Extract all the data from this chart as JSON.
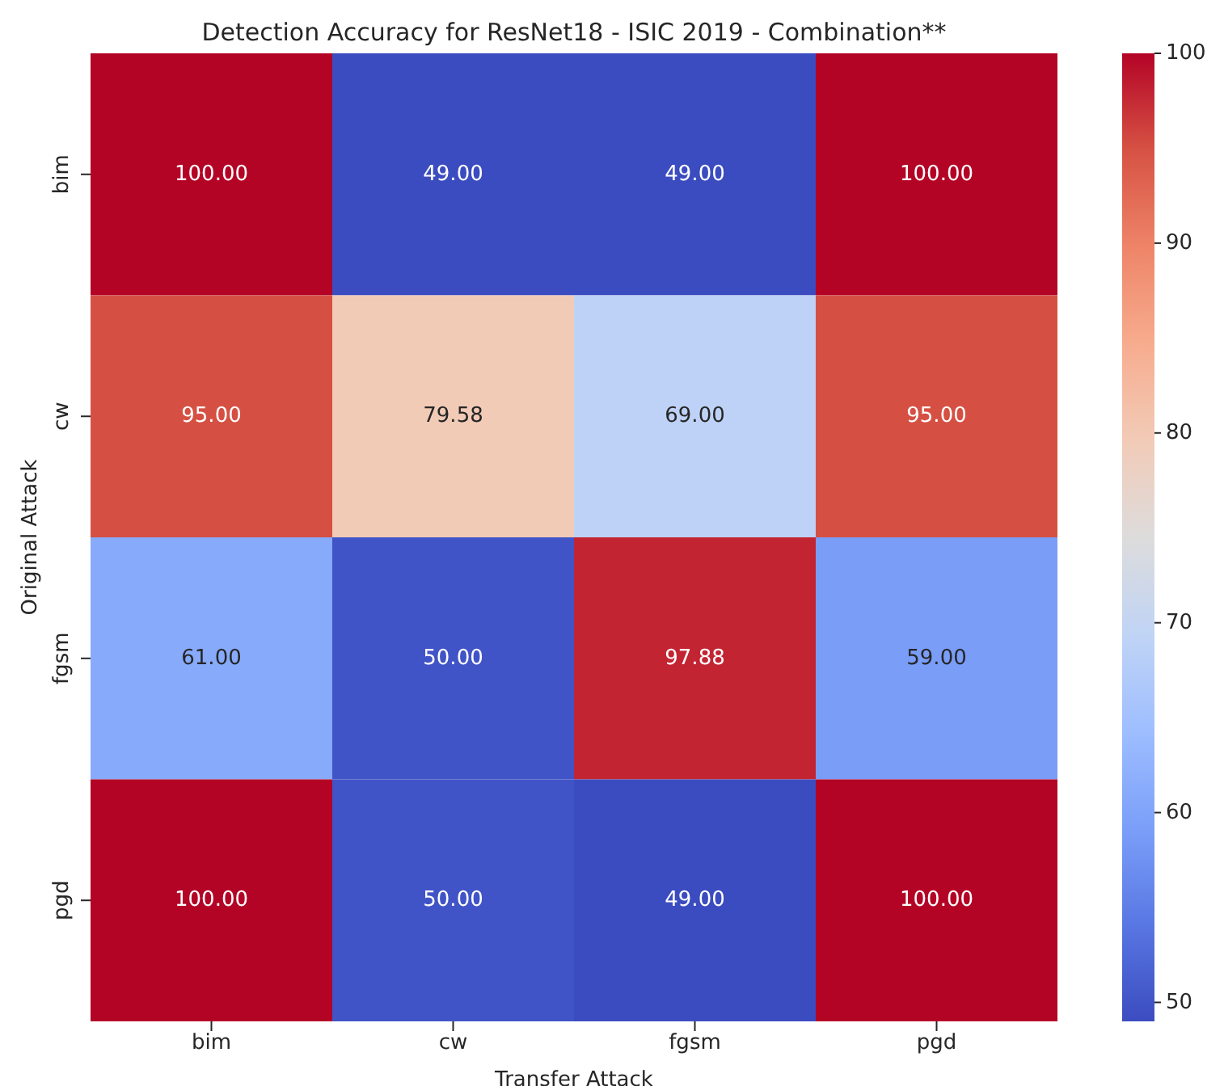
{
  "chart_data": {
    "type": "heatmap",
    "title": "Detection Accuracy for ResNet18 - ISIC 2019 - Combination**",
    "xlabel": "Transfer Attack",
    "ylabel": "Original Attack",
    "categories": [
      "bim",
      "cw",
      "fgsm",
      "pgd"
    ],
    "y_categories": [
      "bim",
      "cw",
      "fgsm",
      "pgd"
    ],
    "cells": [
      [
        100.0,
        49.0,
        49.0,
        100.0
      ],
      [
        95.0,
        79.58,
        69.0,
        95.0
      ],
      [
        61.0,
        50.0,
        97.88,
        59.0
      ],
      [
        100.0,
        50.0,
        49.0,
        100.0
      ]
    ],
    "cell_labels": [
      [
        "100.00",
        "49.00",
        "49.00",
        "100.00"
      ],
      [
        "95.00",
        "79.58",
        "69.00",
        "95.00"
      ],
      [
        "61.00",
        "50.00",
        "97.88",
        "59.00"
      ],
      [
        "100.00",
        "50.00",
        "49.00",
        "100.00"
      ]
    ],
    "clim": [
      49,
      100
    ],
    "cticks": [
      50,
      60,
      70,
      80,
      90,
      100
    ]
  }
}
